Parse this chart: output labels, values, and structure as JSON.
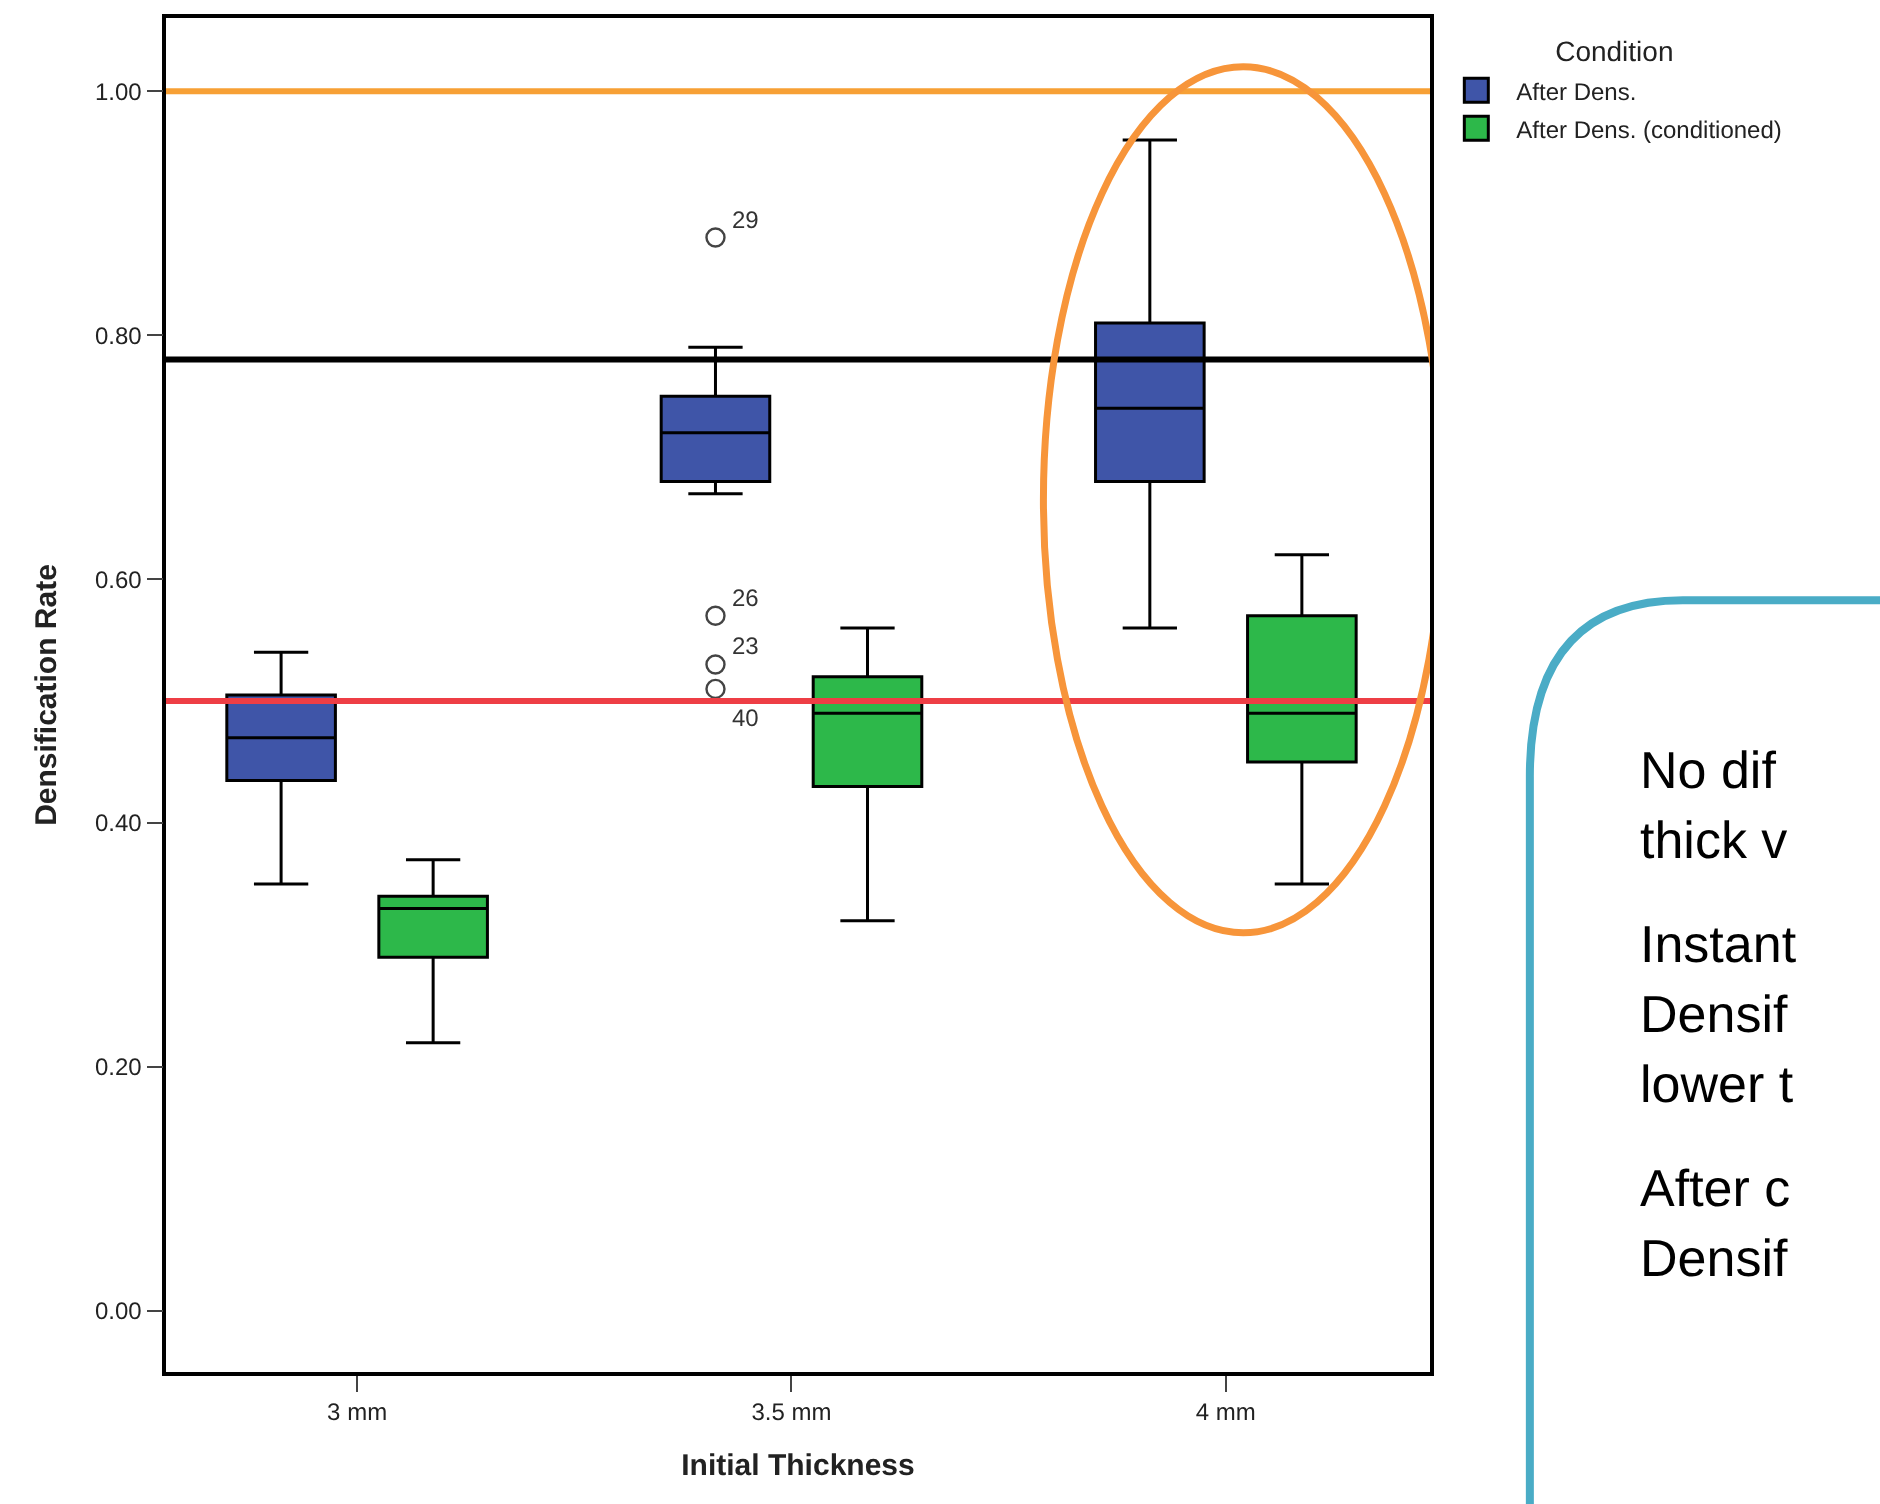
{
  "chart_data": {
    "type": "box",
    "xlabel": "Initial Thickness",
    "ylabel": "Densification Rate",
    "legend_title": "Condition",
    "legend": "top right",
    "categories": [
      "3 mm",
      "3.5 mm",
      "4 mm"
    ],
    "series": [
      {
        "name": "After Dens.",
        "color": "#3f55a8",
        "boxes": [
          {
            "low": 0.35,
            "q1": 0.435,
            "median": 0.47,
            "q3": 0.505,
            "high": 0.54
          },
          {
            "low": 0.67,
            "q1": 0.68,
            "median": 0.72,
            "q3": 0.75,
            "high": 0.79,
            "outliers": [
              0.88,
              0.57,
              0.53,
              0.51
            ]
          },
          {
            "low": 0.56,
            "q1": 0.68,
            "median": 0.74,
            "q3": 0.81,
            "high": 0.96
          }
        ]
      },
      {
        "name": "After Dens. (conditioned)",
        "color": "#2db84a",
        "boxes": [
          {
            "low": 0.22,
            "q1": 0.29,
            "median": 0.33,
            "q3": 0.34,
            "high": 0.37
          },
          {
            "low": 0.32,
            "q1": 0.43,
            "median": 0.49,
            "q3": 0.52,
            "high": 0.56
          },
          {
            "low": 0.35,
            "q1": 0.45,
            "median": 0.49,
            "q3": 0.57,
            "high": 0.62
          }
        ]
      }
    ],
    "ylim": [
      -0.05,
      1.06
    ],
    "yticks": [
      {
        "value": 0,
        "label": "0.00"
      },
      {
        "value": 0.2,
        "label": "0.20"
      },
      {
        "value": 0.4,
        "label": "0.40"
      },
      {
        "value": 0.6,
        "label": "0.60"
      },
      {
        "value": 0.8,
        "label": "0.80"
      },
      {
        "value": 1.0,
        "label": "1.00"
      }
    ],
    "marker": "circle",
    "ref_lines": [
      {
        "axis": "y",
        "value": 1.0,
        "color": "#f7a035"
      },
      {
        "axis": "y",
        "value": 0.78,
        "color": "#000000"
      },
      {
        "axis": "y",
        "value": 0.5,
        "color": "#ee3e45"
      }
    ],
    "annotations": [
      "29",
      "26",
      "23",
      "40",
      "No dif",
      "thick v",
      "Instant",
      "Densif",
      "lower t",
      "After c",
      "Densif"
    ]
  }
}
